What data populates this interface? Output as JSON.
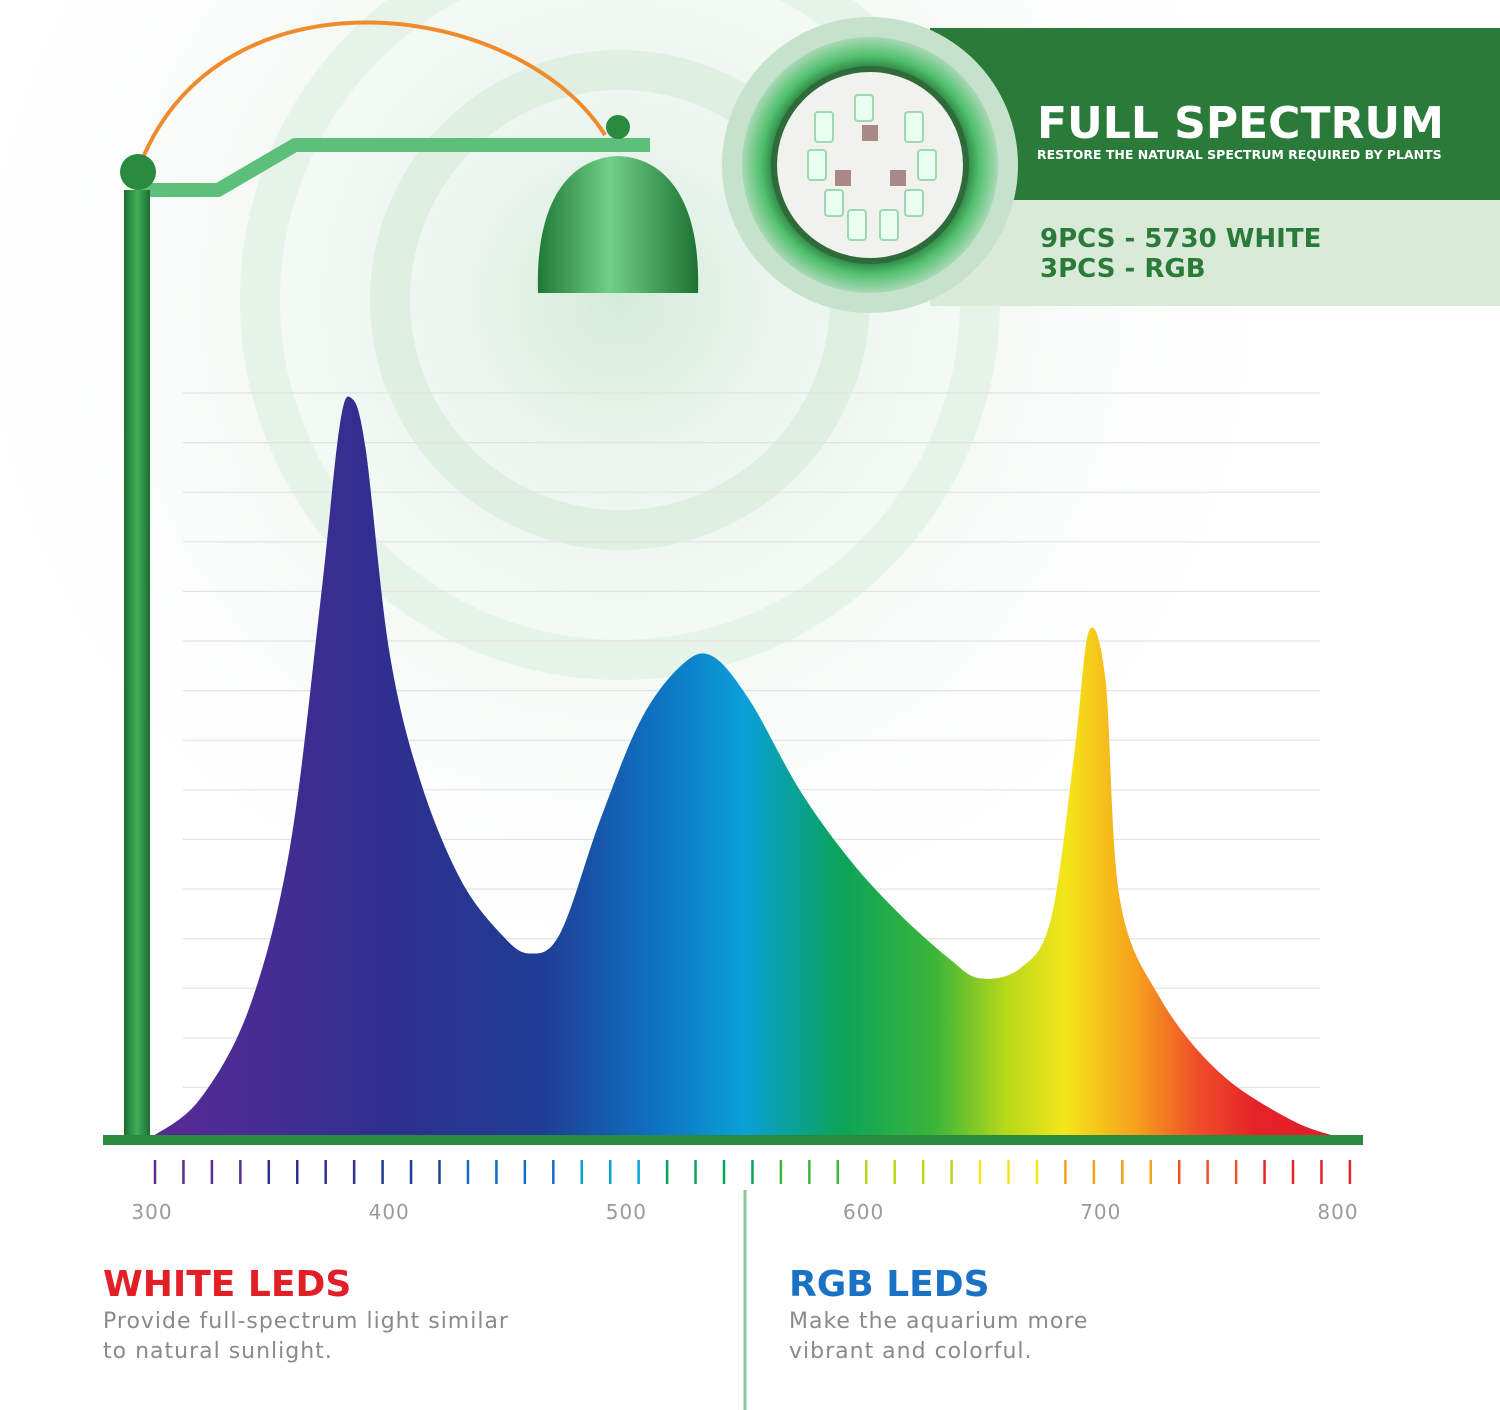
{
  "header": {
    "title": "FULL SPECTRUM",
    "subtitle": "RESTORE THE NATURAL SPECTRUM REQUIRED BY PLANTS",
    "specs": [
      "9PCS - 5730 WHITE",
      "3PCS - RGB"
    ]
  },
  "chart_data": {
    "type": "area",
    "x": [
      300,
      320,
      341,
      358,
      371,
      379,
      384,
      390,
      400,
      413,
      430,
      447,
      459,
      472,
      489,
      506,
      523,
      536,
      552,
      573,
      594,
      615,
      636,
      649,
      666,
      679,
      689,
      695,
      702,
      708,
      725,
      750,
      780,
      800
    ],
    "values": [
      0,
      0.75,
      2.6,
      5.8,
      10.8,
      14.3,
      14.9,
      13.9,
      9.8,
      7.2,
      5.2,
      4.1,
      3.7,
      4.1,
      6.4,
      8.4,
      9.5,
      9.7,
      8.8,
      7.0,
      5.6,
      4.5,
      3.6,
      3.2,
      3.4,
      4.4,
      7.8,
      10.2,
      9.2,
      4.8,
      2.8,
      1.3,
      0.35,
      0
    ],
    "xlim": [
      300,
      800
    ],
    "xticks": [
      300,
      400,
      500,
      600,
      700,
      800
    ],
    "ylim": [
      0,
      15
    ],
    "yticks": [
      1,
      2,
      3,
      4,
      5,
      6,
      7,
      8,
      9,
      10,
      11,
      12,
      13,
      14,
      15
    ],
    "grid": true
  },
  "features": [
    {
      "title": "WHITE LEDS",
      "color": "#e21f26",
      "lines": [
        "Provide full-spectrum light similar",
        "to natural sunlight."
      ]
    },
    {
      "title": "RGB LEDS",
      "color": "#1a72c4",
      "lines": [
        "Make the aquarium more",
        "vibrant and colorful."
      ]
    }
  ]
}
